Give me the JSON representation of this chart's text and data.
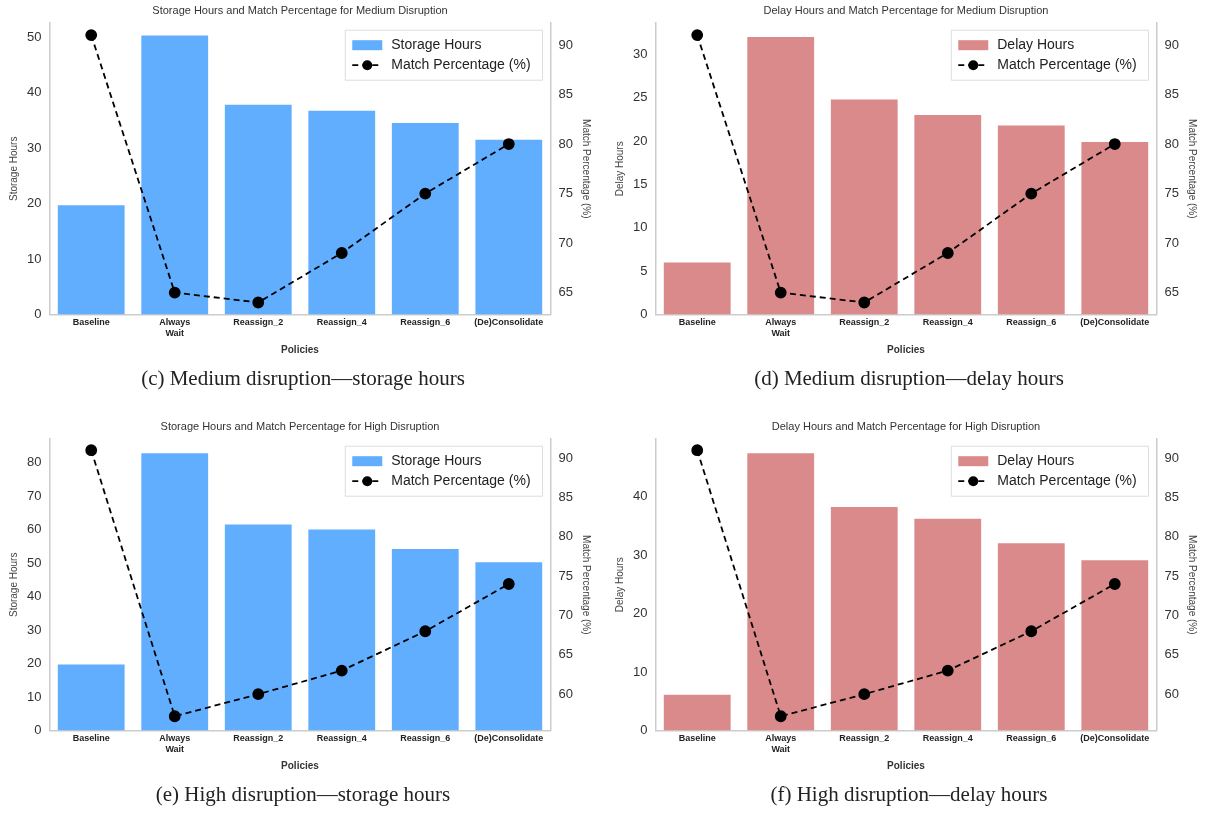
{
  "chart_data": [
    {
      "type": "bar",
      "title": "Storage Hours and Match Percentage for Medium Disruption",
      "xlabel": "Policies",
      "ylabel": "Storage Hours",
      "y2label": "Match Percentage (%)",
      "categories": [
        "Baseline",
        "Always\nWait",
        "Reassign_2",
        "Reassign_4",
        "Reassign_6",
        "(De)Consolidate"
      ],
      "series": [
        {
          "name": "Storage Hours",
          "color": "#62aefe",
          "values": [
            19.7,
            50.3,
            37.8,
            36.7,
            34.5,
            31.5
          ]
        },
        {
          "name": "Match Percentage (%)",
          "type": "line",
          "axis": "y2",
          "color": "#000000",
          "marker": "circle",
          "line_style": "dashed",
          "values": [
            91,
            65,
            64,
            69,
            75,
            80
          ]
        }
      ],
      "ylim": [
        0,
        52.5
      ],
      "yticks": [
        0,
        10,
        20,
        30,
        40,
        50
      ],
      "y2lim": [
        62.8,
        92.2
      ],
      "y2ticks": [
        65,
        70,
        75,
        80,
        85,
        90
      ],
      "grid": false,
      "legend": "top right",
      "annotations": [
        "(c) Medium disruption—storage hours"
      ]
    },
    {
      "type": "bar",
      "title": "Delay Hours and Match Percentage for Medium Disruption",
      "xlabel": "Policies",
      "ylabel": "Delay Hours",
      "y2label": "Match Percentage (%)",
      "categories": [
        "Baseline",
        "Always\nWait",
        "Reassign_2",
        "Reassign_4",
        "Reassign_6",
        "(De)Consolidate"
      ],
      "series": [
        {
          "name": "Delay Hours",
          "color": "#da8a8a",
          "values": [
            6.0,
            32.0,
            24.8,
            23.0,
            21.8,
            19.9
          ]
        },
        {
          "name": "Match Percentage (%)",
          "type": "line",
          "axis": "y2",
          "color": "#000000",
          "marker": "circle",
          "line_style": "dashed",
          "values": [
            91,
            65,
            64,
            69,
            75,
            80
          ]
        }
      ],
      "ylim": [
        0,
        33.6
      ],
      "yticks": [
        0,
        5,
        10,
        15,
        20,
        25,
        30
      ],
      "y2lim": [
        62.8,
        92.2
      ],
      "y2ticks": [
        65,
        70,
        75,
        80,
        85,
        90
      ],
      "grid": false,
      "legend": "top right",
      "annotations": [
        "(d) Medium disruption—delay hours"
      ]
    },
    {
      "type": "bar",
      "title": "Storage Hours and Match Percentage for High Disruption",
      "xlabel": "Policies",
      "ylabel": "Storage Hours",
      "y2label": "Match Percentage (%)",
      "categories": [
        "Baseline",
        "Always\nWait",
        "Reassign_2",
        "Reassign_4",
        "Reassign_6",
        "(De)Consolidate"
      ],
      "series": [
        {
          "name": "Storage Hours",
          "color": "#62aefe",
          "values": [
            19.7,
            82.8,
            61.5,
            60.0,
            54.2,
            50.2
          ]
        },
        {
          "name": "Match Percentage (%)",
          "type": "line",
          "axis": "y2",
          "color": "#000000",
          "marker": "circle",
          "line_style": "dashed",
          "values": [
            91,
            57.2,
            60,
            63,
            68,
            74
          ]
        }
      ],
      "ylim": [
        0,
        87
      ],
      "yticks": [
        0,
        10,
        20,
        30,
        40,
        50,
        60,
        70,
        80
      ],
      "y2lim": [
        55.4,
        92.4
      ],
      "y2ticks": [
        60,
        65,
        70,
        75,
        80,
        85,
        90
      ],
      "grid": false,
      "legend": "top right",
      "annotations": [
        "(e) High disruption—storage hours"
      ]
    },
    {
      "type": "bar",
      "title": "Delay Hours and Match Percentage for High Disruption",
      "xlabel": "Policies",
      "ylabel": "Delay Hours",
      "y2label": "Match Percentage (%)",
      "categories": [
        "Baseline",
        "Always\nWait",
        "Reassign_2",
        "Reassign_4",
        "Reassign_6",
        "(De)Consolidate"
      ],
      "series": [
        {
          "name": "Delay Hours",
          "color": "#da8a8a",
          "values": [
            6.1,
            47.4,
            38.2,
            36.2,
            32.0,
            29.1
          ]
        },
        {
          "name": "Match Percentage (%)",
          "type": "line",
          "axis": "y2",
          "color": "#000000",
          "marker": "circle",
          "line_style": "dashed",
          "values": [
            91,
            57.2,
            60,
            63,
            68,
            74
          ]
        }
      ],
      "ylim": [
        0,
        49.8
      ],
      "yticks": [
        0,
        10,
        20,
        30,
        40
      ],
      "y2lim": [
        55.4,
        92.4
      ],
      "y2ticks": [
        60,
        65,
        70,
        75,
        80,
        85,
        90
      ],
      "grid": false,
      "legend": "top right",
      "annotations": [
        "(f) High disruption—delay hours"
      ]
    }
  ]
}
